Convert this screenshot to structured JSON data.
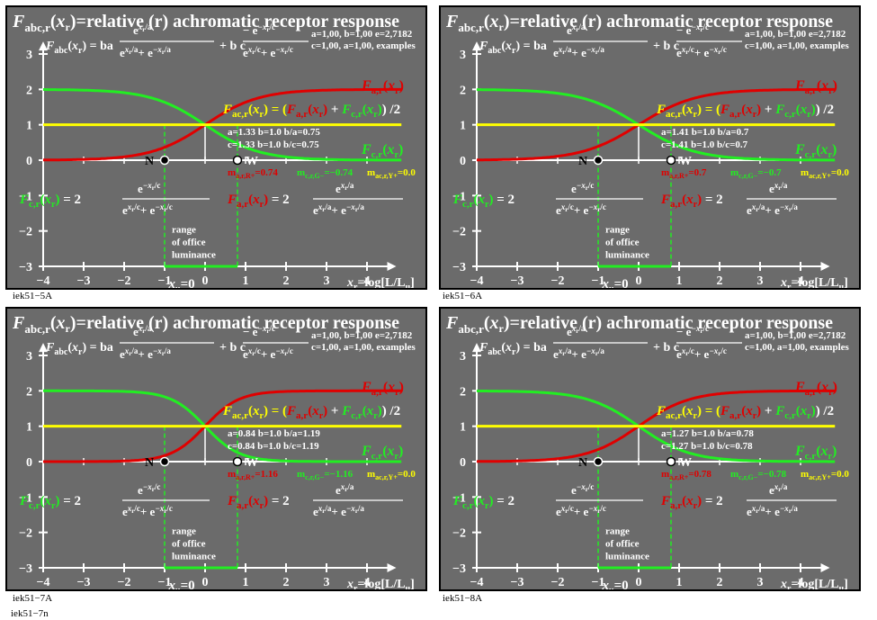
{
  "common": {
    "title_F": "F",
    "title_sub": "abc,r",
    "title_rest": "=relative (r) achromatic receptor response",
    "formula_lhs_F": "F",
    "formula_lhs_sub": "abc",
    "formula_ba": "ba",
    "formula_bc": "+ b c",
    "params_line1": "a=1,00, b=1,00 e=2,7182",
    "params_line2": "c=1,00, a=1,00, examples",
    "label_Fa": "F",
    "label_Fa_sub": "a,r",
    "label_Fc": "F",
    "label_Fc_sub": "c,r",
    "label_Fac": "F",
    "label_Fac_sub": "ac,r",
    "div2": "/2",
    "two": "= 2",
    "N": "N",
    "W": "W",
    "range_text": [
      "range",
      "of office",
      "luminance"
    ],
    "xu_label": "x",
    "xu_sub": "u",
    "xr_label": "x",
    "xr_sub": "r",
    "xr_rest": "=log[L/L",
    "xr_rest_sub": "u",
    "xr_end": "]",
    "colors": {
      "background": "#6b6b6b",
      "red": "#e00000",
      "green": "#22ee22",
      "yellow": "#ffff00",
      "white": "#ffffff"
    }
  },
  "chart_data": [
    {
      "type": "line",
      "id": "iek51-5A",
      "a": 1.33,
      "b": 1.0,
      "c": 1.33,
      "params_text": [
        "a=1.33  b=1.0  b/a=0.75",
        "c=1.33  b=1.0  b/c=0.75"
      ],
      "slopes": {
        "m_a": "m",
        "m_a_sub": "a,r,R+",
        "m_a_val": "=0.74",
        "m_c": "m",
        "m_c_sub": "c,r,G−",
        "m_c_val": "=−0.74",
        "m_ac": "m",
        "m_ac_sub": "ac,r,Y+",
        "m_ac_val": "=0.0"
      },
      "xlim": [
        -4,
        5
      ],
      "ylim": [
        -3,
        3
      ],
      "x_ticks": [
        "−4",
        "−3",
        "−2",
        "−1",
        "0",
        "1",
        "2",
        "3",
        "4"
      ],
      "y_ticks": [
        "3",
        "2",
        "1",
        "0",
        "−1",
        "−2",
        "−3"
      ],
      "range": [
        -1,
        0.8
      ],
      "N_x": -1,
      "W_x": 0.8,
      "series": [
        {
          "name": "Fa,r(xr)",
          "formula": "2·e^(x/a)/(e^(x/a)+e^(−x/a))"
        },
        {
          "name": "Fc,r(xr)",
          "formula": "2·e^(−x/c)/(e^(x/c)+e^(−x/c))"
        },
        {
          "name": "Fac,r(xr)",
          "formula": "(Fa,r+Fc,r)/2",
          "value": 1
        }
      ]
    },
    {
      "type": "line",
      "id": "iek51-6A",
      "a": 1.41,
      "b": 1.0,
      "c": 1.41,
      "params_text": [
        "a=1.41  b=1.0  b/a=0.7",
        "c=1.41  b=1.0  b/c=0.7"
      ],
      "slopes": {
        "m_a": "m",
        "m_a_sub": "a,r,R+",
        "m_a_val": "=0.7",
        "m_c": "m",
        "m_c_sub": "c,r,G−",
        "m_c_val": "=−0.7",
        "m_ac": "m",
        "m_ac_sub": "ac,r,Y+",
        "m_ac_val": "=0.0"
      },
      "xlim": [
        -4,
        5
      ],
      "ylim": [
        -3,
        3
      ],
      "x_ticks": [
        "−4",
        "−3",
        "−2",
        "−1",
        "0",
        "1",
        "2",
        "3",
        "4"
      ],
      "y_ticks": [
        "3",
        "2",
        "1",
        "0",
        "−1",
        "−2",
        "−3"
      ],
      "range": [
        -1,
        0.8
      ],
      "N_x": -1,
      "W_x": 0.8,
      "series": [
        {
          "name": "Fa,r(xr)",
          "formula": "2·e^(x/a)/(e^(x/a)+e^(−x/a))"
        },
        {
          "name": "Fc,r(xr)",
          "formula": "2·e^(−x/c)/(e^(x/c)+e^(−x/c))"
        },
        {
          "name": "Fac,r(xr)",
          "formula": "(Fa,r+Fc,r)/2",
          "value": 1
        }
      ]
    },
    {
      "type": "line",
      "id": "iek51-7A",
      "a": 0.84,
      "b": 1.0,
      "c": 0.84,
      "params_text": [
        "a=0.84  b=1.0  b/a=1.19",
        "c=0.84  b=1.0  b/c=1.19"
      ],
      "slopes": {
        "m_a": "m",
        "m_a_sub": "a,r,R+",
        "m_a_val": "=1.16",
        "m_c": "m",
        "m_c_sub": "c,r,G−",
        "m_c_val": "=−1.16",
        "m_ac": "m",
        "m_ac_sub": "ac,r,Y+",
        "m_ac_val": "=0.0"
      },
      "xlim": [
        -4,
        5
      ],
      "ylim": [
        -3,
        3
      ],
      "x_ticks": [
        "−4",
        "−3",
        "−2",
        "−1",
        "0",
        "1",
        "2",
        "3",
        "4"
      ],
      "y_ticks": [
        "3",
        "2",
        "1",
        "0",
        "−1",
        "−2",
        "−3"
      ],
      "range": [
        -1,
        0.8
      ],
      "N_x": -1,
      "W_x": 0.8,
      "series": [
        {
          "name": "Fa,r(xr)",
          "formula": "2·e^(x/a)/(e^(x/a)+e^(−x/a))"
        },
        {
          "name": "Fc,r(xr)",
          "formula": "2·e^(−x/c)/(e^(x/c)+e^(−x/c))"
        },
        {
          "name": "Fac,r(xr)",
          "formula": "(Fa,r+Fc,r)/2",
          "value": 1
        }
      ]
    },
    {
      "type": "line",
      "id": "iek51-8A",
      "a": 1.27,
      "b": 1.0,
      "c": 1.27,
      "params_text": [
        "a=1.27  b=1.0  b/a=0.78",
        "c=1.27  b=1.0  b/c=0.78"
      ],
      "slopes": {
        "m_a": "m",
        "m_a_sub": "a,r,R+",
        "m_a_val": "=0.78",
        "m_c": "m",
        "m_c_sub": "c,r,G−",
        "m_c_val": "=−0.78",
        "m_ac": "m",
        "m_ac_sub": "ac,r,Y+",
        "m_ac_val": "=0.0"
      },
      "xlim": [
        -4,
        5
      ],
      "ylim": [
        -3,
        3
      ],
      "x_ticks": [
        "−4",
        "−3",
        "−2",
        "−1",
        "0",
        "1",
        "2",
        "3",
        "4"
      ],
      "y_ticks": [
        "3",
        "2",
        "1",
        "0",
        "−1",
        "−2",
        "−3"
      ],
      "range": [
        -1,
        0.8
      ],
      "N_x": -1,
      "W_x": 0.8,
      "series": [
        {
          "name": "Fa,r(xr)",
          "formula": "2·e^(x/a)/(e^(x/a)+e^(−x/a))"
        },
        {
          "name": "Fc,r(xr)",
          "formula": "2·e^(−x/c)/(e^(x/c)+e^(−x/c))"
        },
        {
          "name": "Fac,r(xr)",
          "formula": "(Fa,r+Fc,r)/2",
          "value": 1
        }
      ]
    }
  ],
  "figure_id": "iek51−7n",
  "panel_labels": [
    "iek51−5A",
    "iek51−6A",
    "iek51−7A",
    "iek51−8A"
  ]
}
